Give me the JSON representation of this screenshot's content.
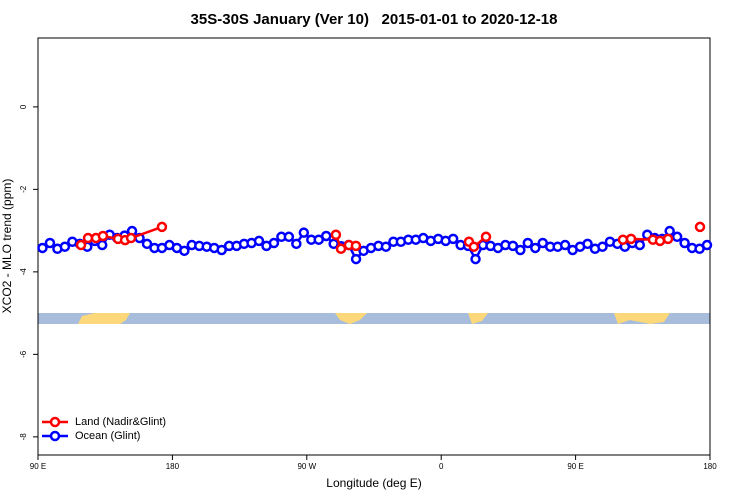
{
  "chart_data": {
    "type": "line",
    "title": "35S-30S January (Ver 10)   2015-01-01 to 2020-12-18",
    "xlabel": "Longitude (deg E)",
    "ylabel": "XCO2 - MLO trend (ppm)",
    "xlim": [
      90,
      540
    ],
    "xticks": [
      {
        "value": 90,
        "label": "90 E"
      },
      {
        "value": 180,
        "label": "180"
      },
      {
        "value": 270,
        "label": "90 W"
      },
      {
        "value": 360,
        "label": "0"
      },
      {
        "value": 450,
        "label": "90 E"
      },
      {
        "value": 540,
        "label": "180"
      }
    ],
    "ylim": [
      -8.44,
      1.67
    ],
    "yticks": [
      0,
      -2,
      -4,
      -6,
      -8
    ],
    "legend": "bottom-left",
    "series": [
      {
        "name": "Ocean (Glint)",
        "color": "#0000ff",
        "x": [
          93,
          98,
          103,
          108,
          113,
          118,
          123,
          128,
          133,
          138,
          143,
          148,
          153,
          158,
          163,
          168,
          173,
          178,
          183,
          188,
          193,
          198,
          203,
          208,
          213,
          218,
          223,
          228,
          233,
          238,
          243,
          248,
          253,
          258,
          263,
          268,
          273,
          278,
          283,
          288,
          293,
          298,
          303,
          308,
          313,
          318,
          323,
          328,
          333,
          338,
          343,
          348,
          353,
          358,
          363,
          368,
          373,
          378,
          383,
          388,
          393,
          398,
          403,
          408,
          413,
          418,
          423,
          428,
          433,
          438,
          443,
          448,
          453,
          458,
          463,
          468,
          473,
          478,
          483,
          488,
          493,
          498,
          503,
          508,
          513,
          518,
          523,
          528,
          533,
          538
        ],
        "values": [
          -3.42,
          -3.3,
          -3.44,
          -3.39,
          -3.27,
          -3.32,
          -3.39,
          -3.25,
          -3.35,
          -3.1,
          -3.18,
          -3.12,
          -3.01,
          -3.18,
          -3.32,
          -3.42,
          -3.42,
          -3.35,
          -3.42,
          -3.49,
          -3.35,
          -3.37,
          -3.39,
          -3.42,
          -3.47,
          -3.37,
          -3.37,
          -3.32,
          -3.3,
          -3.25,
          -3.37,
          -3.3,
          -3.15,
          -3.15,
          -3.32,
          -3.05,
          -3.22,
          -3.22,
          -3.13,
          -3.32,
          -3.38,
          -3.35,
          -3.69,
          -3.49,
          -3.42,
          -3.37,
          -3.39,
          -3.27,
          -3.27,
          -3.22,
          -3.22,
          -3.18,
          -3.25,
          -3.2,
          -3.25,
          -3.2,
          -3.35,
          -3.37,
          -3.69,
          -3.35,
          -3.37,
          -3.42,
          -3.35,
          -3.37,
          -3.47,
          -3.3,
          -3.42,
          -3.3,
          -3.39,
          -3.39,
          -3.35,
          -3.47,
          -3.39,
          -3.32,
          -3.44,
          -3.39,
          -3.27,
          -3.32,
          -3.39,
          -3.3,
          -3.35,
          -3.1,
          -3.18,
          -3.2,
          -3.01,
          -3.15,
          -3.3,
          -3.42,
          -3.44,
          -3.35
        ]
      },
      {
        "name": "Land (Nadir&Glint)",
        "color": "#ff0000",
        "x": [
          118.8,
          123.5,
          128.8,
          133.5,
          143.6,
          148.3,
          152.3,
          173.0,
          null,
          289.5,
          292.9,
          298.2,
          302.9,
          null,
          378.6,
          381.9,
          390.0,
          null,
          481.7,
          487.1,
          501.8,
          506.5,
          511.9,
          null,
          533.3
        ],
        "values": [
          -3.35,
          -3.18,
          -3.18,
          -3.13,
          -3.2,
          -3.23,
          -3.18,
          -2.91,
          null,
          -3.1,
          -3.44,
          -3.35,
          -3.37,
          null,
          -3.27,
          -3.39,
          -3.15,
          null,
          -3.22,
          -3.2,
          -3.22,
          -3.25,
          -3.2,
          null,
          -2.91
        ]
      }
    ]
  }
}
